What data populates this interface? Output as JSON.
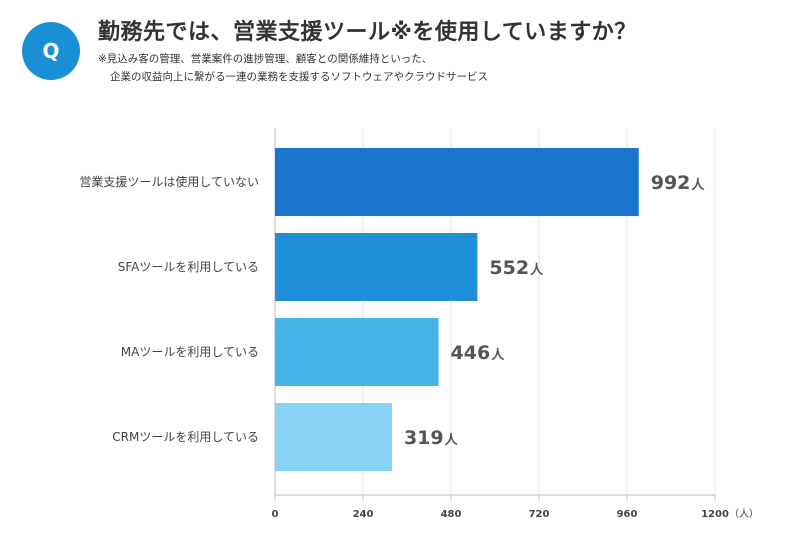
{
  "question": {
    "badge": "Q",
    "title": "勤務先では、営業支援ツール※を使用していますか？",
    "note_line1": "※見込み客の管理、営業案件の進捗管理、顧客との関係維持といった、",
    "note_line2": "企業の収益向上に繋がる一連の業務を支援するソフトウェアやクラウドサービス"
  },
  "chart_data": {
    "type": "bar",
    "orientation": "horizontal",
    "categories": [
      "営業支援ツールは使用していない",
      "SFAツールを利用している",
      "MAツールを利用している",
      "CRMツールを利用している"
    ],
    "values": [
      992,
      552,
      446,
      319
    ],
    "value_unit": "人",
    "colors": [
      "#1874cd",
      "#1e8fd8",
      "#45b2e8",
      "#87d3f5"
    ],
    "xlim": [
      0,
      1200
    ],
    "xticks": [
      0,
      240,
      480,
      720,
      960,
      1200
    ],
    "xtick_labels": [
      "0",
      "240",
      "480",
      "720",
      "960",
      "1200"
    ],
    "axis_unit": "（人）",
    "grid": true
  }
}
